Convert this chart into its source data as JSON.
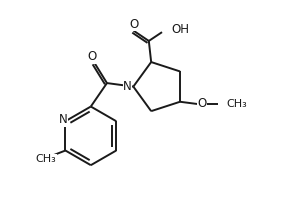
{
  "background": "#ffffff",
  "line_color": "#1a1a1a",
  "line_width": 1.4,
  "font_size": 8.5,
  "figsize": [
    2.96,
    2.16
  ],
  "dpi": 100,
  "xlim": [
    0,
    10
  ],
  "ylim": [
    0,
    7
  ]
}
